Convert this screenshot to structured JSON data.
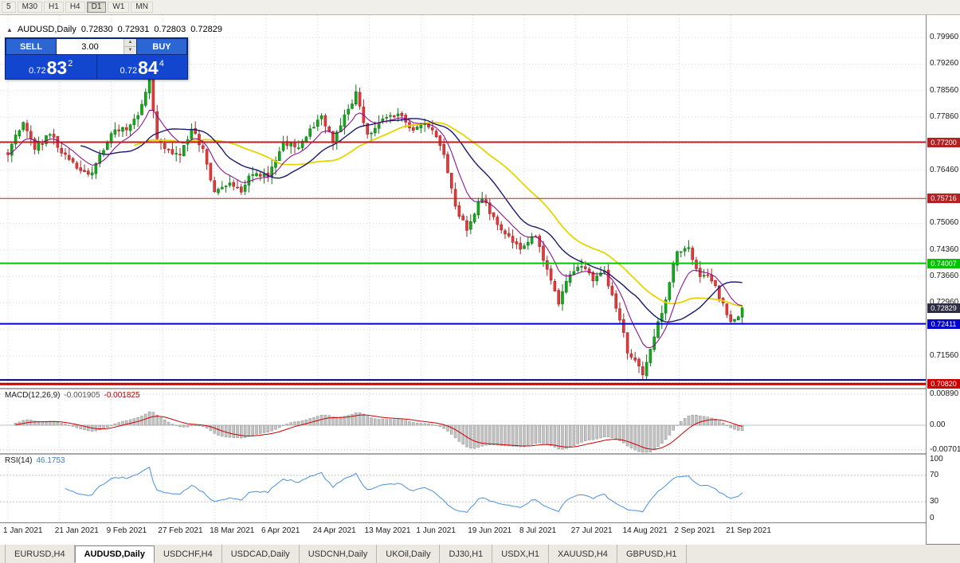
{
  "toolbar": {
    "timeframes": [
      "5",
      "M30",
      "H1",
      "H4",
      "D1",
      "W1",
      "MN"
    ],
    "active": "D1"
  },
  "chart": {
    "symbol_label": "AUDUSD,Daily",
    "ohlc": {
      "open": "0.72830",
      "high": "0.72931",
      "low": "0.72803",
      "close": "0.72829"
    },
    "collapse_icon": "▲",
    "price_scale": [
      {
        "v": 0.7996,
        "t": "0.79960"
      },
      {
        "v": 0.7926,
        "t": "0.79260"
      },
      {
        "v": 0.7856,
        "t": "0.78560"
      },
      {
        "v": 0.7786,
        "t": "0.77860"
      },
      {
        "v": 0.7646,
        "t": "0.76460"
      },
      {
        "v": 0.7506,
        "t": "0.75060"
      },
      {
        "v": 0.7436,
        "t": "0.74360"
      },
      {
        "v": 0.7366,
        "t": "0.73660"
      },
      {
        "v": 0.7296,
        "t": "0.72960"
      },
      {
        "v": 0.7156,
        "t": "0.71560"
      }
    ],
    "levels": [
      {
        "price": 0.772,
        "label": "0.77200",
        "color": "#B22222",
        "width": 2
      },
      {
        "price": 0.75716,
        "label": "0.75716",
        "color": "#B22222",
        "width": 1
      },
      {
        "price": 0.74007,
        "label": "0.74007",
        "color": "#00C400",
        "width": 2
      },
      {
        "price": 0.72411,
        "label": "0.72411",
        "color": "#0000CD",
        "width": 2
      },
      {
        "price": 0.7093,
        "label": null,
        "color": "#000080",
        "width": 2
      },
      {
        "price": 0.7082,
        "label": "0.70820",
        "color": "#CC0000",
        "width": 3
      }
    ],
    "current_price": {
      "v": 0.72829,
      "t": "0.72829",
      "bg": "#2d2d44"
    },
    "x_ticks": [
      "1 Jan 2021",
      "21 Jan 2021",
      "9 Feb 2021",
      "27 Feb 2021",
      "18 Mar 2021",
      "6 Apr 2021",
      "24 Apr 2021",
      "13 May 2021",
      "1 Jun 2021",
      "19 Jun 2021",
      "8 Jul 2021",
      "27 Jul 2021",
      "14 Aug 2021",
      "2 Sep 2021",
      "21 Sep 2021"
    ]
  },
  "trade": {
    "sell_label": "SELL",
    "buy_label": "BUY",
    "volume": "3.00",
    "sell": {
      "prefix": "0.72",
      "big": "83",
      "sup": "2"
    },
    "buy": {
      "prefix": "0.72",
      "big": "84",
      "sup": "4"
    }
  },
  "macd": {
    "name": "MACD(12,26,9)",
    "value_main": "-0.001905",
    "value_signal": "-0.001825",
    "scale": [
      {
        "v": 0.0089,
        "t": "0.00890"
      },
      {
        "v": 0.0,
        "t": "0.00"
      },
      {
        "v": -0.00701,
        "t": "-0.00701"
      }
    ]
  },
  "rsi": {
    "name": "RSI(14)",
    "value": "46.1753",
    "scale": [
      {
        "v": 100,
        "t": "100"
      },
      {
        "v": 70,
        "t": "70"
      },
      {
        "v": 30,
        "t": "30"
      },
      {
        "v": 0,
        "t": "0"
      }
    ]
  },
  "tabs": [
    {
      "label": "EURUSD,H4",
      "active": false
    },
    {
      "label": "AUDUSD,Daily",
      "active": true
    },
    {
      "label": "USDCHF,H4",
      "active": false
    },
    {
      "label": "USDCAD,Daily",
      "active": false
    },
    {
      "label": "USDCNH,Daily",
      "active": false
    },
    {
      "label": "UKOil,Daily",
      "active": false
    },
    {
      "label": "DJ30,H1",
      "active": false
    },
    {
      "label": "USDX,H1",
      "active": false
    },
    {
      "label": "XAUUSD,H4",
      "active": false
    },
    {
      "label": "GBPUSD,H1",
      "active": false
    }
  ],
  "colors": {
    "candle_up_fill": "#17a81e",
    "candle_up_stroke": "#0c7a14",
    "candle_down_fill": "#e23b3b",
    "candle_down_stroke": "#a82424",
    "ma_slow_yellow": "#e6d400",
    "ma_mid_navy": "#191970",
    "ma_fast_purple": "#8B008B",
    "macd_hist": "#c4c4c4",
    "macd_hist_border": "#8f8f8f",
    "macd_signal": "#cc0000",
    "rsi_line": "#4a90d9",
    "grid": "#d6d6d6",
    "level_dotted": "#c0c0c0"
  },
  "chart_data": {
    "type": "candlestick",
    "symbol": "AUDUSD",
    "timeframe": "Daily",
    "num_candles": 193,
    "x_range": [
      "1 Jan 2021",
      "24 Sep 2021"
    ],
    "y_range_visible": [
      0.70722,
      0.8055
    ],
    "last_ohlc": {
      "open": 0.7283,
      "high": 0.72931,
      "low": 0.72803,
      "close": 0.72829
    },
    "price_anchors": [
      [
        0,
        0.769
      ],
      [
        4,
        0.7775
      ],
      [
        7,
        0.77
      ],
      [
        11,
        0.7745
      ],
      [
        14,
        0.7695
      ],
      [
        18,
        0.765
      ],
      [
        21,
        0.7628
      ],
      [
        24,
        0.768
      ],
      [
        27,
        0.7745
      ],
      [
        31,
        0.776
      ],
      [
        34,
        0.779
      ],
      [
        37,
        0.788
      ],
      [
        39,
        0.773
      ],
      [
        41,
        0.7703
      ],
      [
        45,
        0.768
      ],
      [
        48,
        0.7755
      ],
      [
        51,
        0.77
      ],
      [
        54,
        0.7585
      ],
      [
        58,
        0.7605
      ],
      [
        61,
        0.759
      ],
      [
        64,
        0.764
      ],
      [
        68,
        0.7635
      ],
      [
        72,
        0.772
      ],
      [
        76,
        0.7705
      ],
      [
        79,
        0.7755
      ],
      [
        82,
        0.779
      ],
      [
        85,
        0.772
      ],
      [
        88,
        0.7785
      ],
      [
        91,
        0.7845
      ],
      [
        94,
        0.7735
      ],
      [
        98,
        0.7785
      ],
      [
        102,
        0.7795
      ],
      [
        106,
        0.7755
      ],
      [
        110,
        0.7765
      ],
      [
        114,
        0.769
      ],
      [
        117,
        0.7545
      ],
      [
        120,
        0.749
      ],
      [
        124,
        0.7575
      ],
      [
        127,
        0.752
      ],
      [
        130,
        0.748
      ],
      [
        134,
        0.7445
      ],
      [
        138,
        0.747
      ],
      [
        141,
        0.7385
      ],
      [
        144,
        0.7295
      ],
      [
        147,
        0.7375
      ],
      [
        150,
        0.74
      ],
      [
        153,
        0.736
      ],
      [
        156,
        0.7375
      ],
      [
        159,
        0.729
      ],
      [
        162,
        0.717
      ],
      [
        166,
        0.711
      ],
      [
        169,
        0.7205
      ],
      [
        172,
        0.731
      ],
      [
        175,
        0.743
      ],
      [
        178,
        0.744
      ],
      [
        181,
        0.737
      ],
      [
        184,
        0.736
      ],
      [
        187,
        0.729
      ],
      [
        189,
        0.724
      ],
      [
        191,
        0.7255
      ],
      [
        192,
        0.72829
      ]
    ],
    "horizontal_levels": [
      0.772,
      0.75716,
      0.74007,
      0.72411,
      0.7082
    ],
    "indicators": [
      {
        "name": "MACD(12,26,9)",
        "values": [
          -0.001905,
          -0.001825
        ],
        "scale": [
          0.0089,
          0.0,
          -0.00701
        ]
      },
      {
        "name": "RSI(14)",
        "value": 46.1753,
        "guides": [
          70,
          30
        ]
      }
    ]
  }
}
